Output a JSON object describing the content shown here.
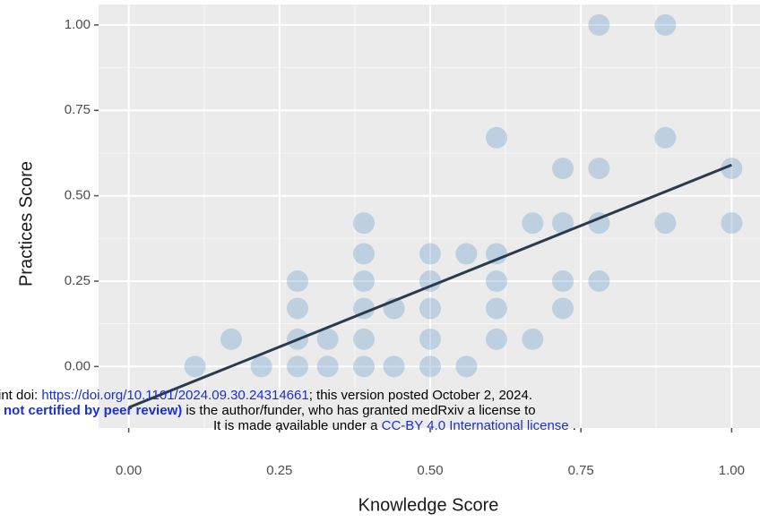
{
  "chart_data": {
    "type": "scatter",
    "xlabel": "Knowledge Score",
    "ylabel": "Practices Score",
    "xlim": [
      -0.05,
      1.05
    ],
    "ylim": [
      -0.18,
      1.06
    ],
    "xticks": [
      {
        "value": 0,
        "label": "0.00"
      },
      {
        "value": 0.25,
        "label": "0.25"
      },
      {
        "value": 0.5,
        "label": "0.50"
      },
      {
        "value": 0.75,
        "label": "0.75"
      },
      {
        "value": 1,
        "label": "1.00"
      }
    ],
    "yticks": [
      {
        "value": 0,
        "label": "0.00"
      },
      {
        "value": 0.25,
        "label": "0.25"
      },
      {
        "value": 0.5,
        "label": "0.50"
      },
      {
        "value": 0.75,
        "label": "0.75"
      },
      {
        "value": 1,
        "label": "1.00"
      }
    ],
    "grid": true,
    "minor_grid": true,
    "series": [
      {
        "type": "scatter",
        "color": "#6b9fcb",
        "x": [
          0.11,
          0.17,
          0.22,
          0.28,
          0.28,
          0.28,
          0.28,
          0.33,
          0.33,
          0.39,
          0.39,
          0.39,
          0.39,
          0.39,
          0.39,
          0.44,
          0.44,
          0.5,
          0.5,
          0.5,
          0.5,
          0.5,
          0.56,
          0.56,
          0.61,
          0.61,
          0.61,
          0.61,
          0.61,
          0.67,
          0.67,
          0.72,
          0.72,
          0.72,
          0.72,
          0.78,
          0.78,
          0.78,
          0.78,
          0.89,
          0.89,
          0.89,
          1,
          1
        ],
        "values": [
          0,
          0.08,
          0,
          0,
          0.08,
          0.17,
          0.25,
          0,
          0.08,
          0,
          0.08,
          0.17,
          0.25,
          0.33,
          0.42,
          0,
          0.17,
          0,
          0.08,
          0.17,
          0.25,
          0.33,
          0,
          0.33,
          0.08,
          0.17,
          0.25,
          0.33,
          0.67,
          0.08,
          0.42,
          0.17,
          0.25,
          0.42,
          0.58,
          0.25,
          0.42,
          0.58,
          1,
          0.42,
          0.67,
          1,
          0.42,
          0.58
        ]
      },
      {
        "type": "line",
        "color": "#2b3a4c",
        "x": [
          0,
          1
        ],
        "values": [
          -0.12,
          0.59
        ]
      }
    ]
  },
  "watermark": {
    "line1": {
      "prefix": "int doi: ",
      "link": "https://doi.org/10.1101/2024.09.30.24314661",
      "suffix": "; this version posted October 2, 2024."
    },
    "line2": {
      "bold": "not certified by peer review)",
      "suffix": " is the author/funder, who has granted medRxiv a license to"
    },
    "line3": {
      "prefix": "It is made available under a ",
      "link": "CC-BY 4.0 International license",
      "suffix": " ."
    }
  }
}
